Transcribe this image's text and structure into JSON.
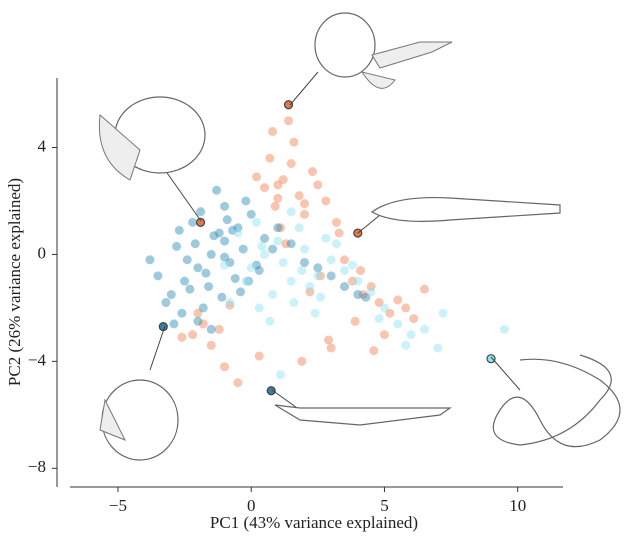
{
  "chart_data": {
    "type": "scatter",
    "x_label": "PC1 (43% variance explained)",
    "y_label": "PC2 (26% variance explained)",
    "xlim": [
      -6.8,
      11.7
    ],
    "ylim": [
      -8.7,
      6.6
    ],
    "xticks": [
      {
        "value": -5,
        "label": "−5"
      },
      0,
      5,
      10
    ],
    "yticks": [
      {
        "value": -8,
        "label": "−8"
      },
      {
        "value": -4,
        "label": "−4"
      },
      0,
      4
    ],
    "series": [
      {
        "color": "#f07e50",
        "x": [
          0.5,
          1.2,
          1.8,
          2.3,
          0.9,
          1.5,
          2.8,
          0.2,
          1.0,
          2.0,
          3.2,
          1.6,
          0.7,
          2.5,
          1.1,
          3.8,
          4.2,
          4.8,
          5.2,
          4.5,
          3.9,
          5.5,
          4.1,
          3.5,
          6.1,
          5.0,
          2.9,
          -1.8,
          -2.2,
          -1.5,
          -2.0,
          -1.2,
          -2.6,
          -0.8,
          1.4,
          1.9,
          0.3,
          2.2,
          3.0,
          -0.5,
          1.3,
          2.6,
          4.6,
          5.8,
          3.3,
          0.8,
          -1.0,
          6.5,
          2.0,
          1.0
        ],
        "y": [
          2.5,
          2.8,
          2.2,
          3.1,
          1.8,
          3.4,
          2.0,
          2.9,
          2.1,
          1.5,
          1.2,
          4.2,
          3.6,
          2.6,
          1.0,
          -1.0,
          -1.5,
          -1.8,
          -2.2,
          -1.2,
          -2.5,
          -1.7,
          -0.6,
          -0.2,
          -2.4,
          -3.0,
          -3.2,
          -2.6,
          -3.0,
          -3.4,
          -2.2,
          -2.8,
          -3.1,
          -1.9,
          5.0,
          -4.0,
          -3.8,
          -1.4,
          -3.5,
          -4.8,
          0.4,
          -0.8,
          -3.6,
          -2.0,
          0.8,
          4.6,
          -4.2,
          -1.3,
          1.9,
          2.6
        ]
      },
      {
        "color": "#2a8ab5",
        "x": [
          -2.0,
          -1.5,
          -1.0,
          -0.5,
          0.0,
          -2.5,
          -3.0,
          -1.8,
          -1.2,
          -0.8,
          -2.2,
          -2.8,
          -3.5,
          -1.6,
          -0.3,
          0.5,
          1.0,
          -1.0,
          -2.0,
          -2.4,
          -1.4,
          -0.6,
          0.2,
          -3.2,
          -2.6,
          -1.9,
          -1.1,
          -0.2,
          0.8,
          1.5,
          2.0,
          3.0,
          3.5,
          4.0,
          -1.7,
          -2.1,
          -0.9,
          -0.4,
          -3.8,
          -2.9,
          -1.3,
          0.3,
          -2.3,
          -1.5,
          -0.7,
          2.5,
          4.3,
          -1.0,
          -2.7,
          -0.1
        ],
        "y": [
          -0.5,
          0.0,
          0.5,
          1.0,
          1.5,
          -1.0,
          -1.5,
          -2.0,
          0.8,
          -0.3,
          1.2,
          0.3,
          -0.8,
          -1.2,
          0.2,
          0.6,
          1.0,
          1.8,
          -2.5,
          -0.2,
          0.7,
          -0.9,
          -0.4,
          -1.8,
          -2.2,
          1.6,
          -1.6,
          2.0,
          0.2,
          0.4,
          -0.3,
          -0.8,
          -1.2,
          -1.5,
          -0.7,
          0.4,
          1.3,
          -1.4,
          -0.2,
          -2.6,
          2.4,
          -0.6,
          -1.3,
          -2.8,
          0.9,
          -0.5,
          -1.6,
          -0.1,
          0.9,
          -1.0
        ]
      },
      {
        "color": "#8fe3f2",
        "x": [
          0.0,
          0.5,
          1.0,
          1.5,
          2.0,
          2.5,
          3.0,
          0.8,
          1.8,
          2.8,
          -0.5,
          0.3,
          1.2,
          2.2,
          3.5,
          4.0,
          4.5,
          5.0,
          5.5,
          6.0,
          6.5,
          7.0,
          1.5,
          0.2,
          -1.0,
          2.4,
          3.2,
          0.7,
          1.9,
          -0.2,
          4.8,
          5.8,
          0.4,
          1.6,
          2.6,
          -0.8,
          3.8,
          7.2,
          9.5,
          1.1
        ],
        "y": [
          -0.5,
          0.0,
          0.5,
          -1.0,
          0.2,
          -0.8,
          -0.2,
          -1.5,
          1.0,
          0.6,
          0.8,
          -2.0,
          -0.3,
          -1.2,
          -0.6,
          -1.0,
          -1.4,
          -2.0,
          -2.6,
          -3.0,
          -2.8,
          -3.5,
          1.6,
          1.2,
          -0.4,
          -2.2,
          0.4,
          -2.5,
          -0.6,
          -1.0,
          -2.4,
          -3.4,
          0.3,
          -1.8,
          -1.6,
          -1.8,
          -0.4,
          -2.2,
          -2.8,
          -4.5
        ]
      },
      {
        "highlight": true,
        "x": [
          1.4,
          -1.9,
          4.0,
          -3.3,
          0.75,
          9.0
        ],
        "y": [
          5.6,
          1.2,
          0.8,
          -2.7,
          -5.1,
          -3.9
        ],
        "colors": [
          "#e0784a",
          "#e0784a",
          "#e0784a",
          "#3a7ea6",
          "#3a7ea6",
          "#8fe3f2"
        ]
      }
    ]
  }
}
